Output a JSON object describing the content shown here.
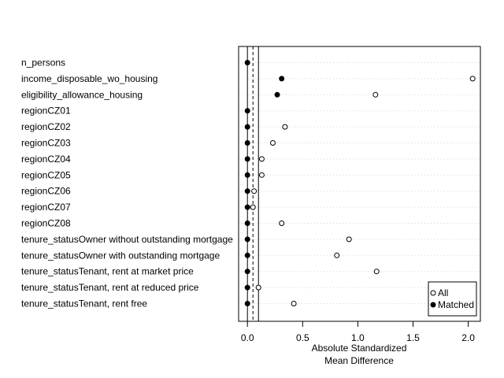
{
  "chart_data": {
    "type": "scatter",
    "title": "",
    "xlabel_lines": [
      "Absolute Standardized",
      "Mean Difference"
    ],
    "ylabel": "",
    "xlim": [
      -0.08,
      2.11
    ],
    "xticks": [
      "0.0",
      "0.5",
      "1.0",
      "1.5",
      "2.0"
    ],
    "xtick_values": [
      0,
      0.5,
      1.0,
      1.5,
      2.0
    ],
    "reference_lines": {
      "solid": [
        0,
        0.1
      ],
      "dashed": [
        0.05
      ]
    },
    "grid": "horizontal dotted",
    "legend_position": "bottom-right",
    "categories": [
      "n_persons",
      "income_disposable_wo_housing",
      "eligibility_allowance_housing",
      "regionCZ01",
      "regionCZ02",
      "regionCZ03",
      "regionCZ04",
      "regionCZ05",
      "regionCZ06",
      "regionCZ07",
      "regionCZ08",
      "tenure_statusOwner without outstanding mortgage",
      "tenure_statusOwner with outstanding mortgage",
      "tenure_statusTenant, rent at market price",
      "tenure_statusTenant, rent at reduced price",
      "tenure_statusTenant, rent free"
    ],
    "series": [
      {
        "name": "All",
        "marker": "open-circle",
        "values": [
          null,
          2.04,
          1.16,
          null,
          0.34,
          0.23,
          0.13,
          0.13,
          0.06,
          0.05,
          0.31,
          0.92,
          0.81,
          1.17,
          0.1,
          0.42
        ]
      },
      {
        "name": "Matched",
        "marker": "filled-circle",
        "values": [
          0.0,
          0.31,
          0.27,
          0.0,
          0.0,
          0.0,
          0.0,
          0.0,
          0.0,
          0.0,
          0.0,
          0.0,
          0.0,
          0.0,
          0.0,
          0.0
        ]
      }
    ]
  }
}
